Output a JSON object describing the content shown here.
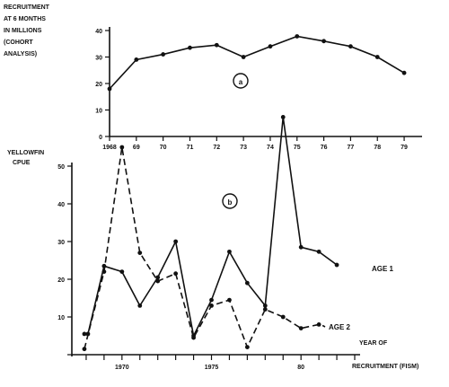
{
  "chart_data": [
    {
      "type": "line",
      "panel_label": "a",
      "ylabel_lines": [
        "RECRUITMENT",
        "AT 6 MONTHS",
        "IN MILLIONS",
        "(COHORT",
        "ANALYSIS)"
      ],
      "x": [
        1968,
        1969,
        1970,
        1971,
        1972,
        1973,
        1974,
        1975,
        1976,
        1977,
        1978,
        1979
      ],
      "x_tick_labels": [
        "1968",
        "69",
        "70",
        "71",
        "72",
        "73",
        "74",
        "75",
        "76",
        "77",
        "78",
        "79"
      ],
      "xlim": [
        1968,
        1979.4
      ],
      "ylim": [
        0,
        40
      ],
      "y_ticks": [
        0,
        10,
        20,
        30,
        40
      ],
      "y_tick_labels": [
        "0",
        "10",
        "20",
        "30",
        "40"
      ],
      "series": [
        {
          "values": [
            18,
            29,
            31,
            33.5,
            34.5,
            30,
            34,
            37.8,
            36,
            34,
            30,
            24
          ]
        }
      ]
    },
    {
      "type": "line",
      "panel_label": "b",
      "ylabel_lines": [
        "YELLOWFIN",
        "CPUE"
      ],
      "xlabel_lines": [
        "YEAR    OF",
        "RECRUITMENT  (FISM)"
      ],
      "xlim": [
        1967.2,
        1983
      ],
      "ylim": [
        0,
        50
      ],
      "x_ticks": [
        1967,
        1968,
        1969,
        1970,
        1971,
        1972,
        1973,
        1974,
        1975,
        1976,
        1977,
        1978,
        1979,
        1980,
        1981,
        1982,
        1983
      ],
      "x_tick_labels": [
        "1970",
        "1975",
        "80"
      ],
      "x_tick_label_values": [
        1970,
        1975,
        1980
      ],
      "y_ticks": [
        0,
        10,
        20,
        30,
        40,
        50
      ],
      "y_tick_labels": [
        "10",
        "20",
        "30",
        "40",
        "50"
      ],
      "y_tick_label_values": [
        10,
        20,
        30,
        40,
        50
      ],
      "series": [
        {
          "name": "AGE 1",
          "style": "solid",
          "x": [
            1967.9,
            1968.1,
            1969,
            1970,
            1971,
            1972,
            1973,
            1974,
            1975,
            1976,
            1977,
            1978,
            1979,
            1980,
            1981,
            1982
          ],
          "values": [
            5.5,
            5.5,
            23.5,
            22,
            13,
            20.5,
            30,
            5,
            14.5,
            27.3,
            19,
            13,
            63,
            28.5,
            27.3,
            23.8
          ]
        },
        {
          "name": "AGE 2",
          "style": "dashed",
          "x": [
            1967.9,
            1969,
            1970,
            1971,
            1972,
            1973,
            1974,
            1975,
            1976,
            1977,
            1978,
            1979,
            1980,
            1981
          ],
          "values": [
            1.5,
            22,
            55,
            27,
            19.5,
            21.5,
            4.5,
            13,
            14.5,
            2,
            12,
            10,
            7,
            8
          ]
        }
      ]
    }
  ]
}
